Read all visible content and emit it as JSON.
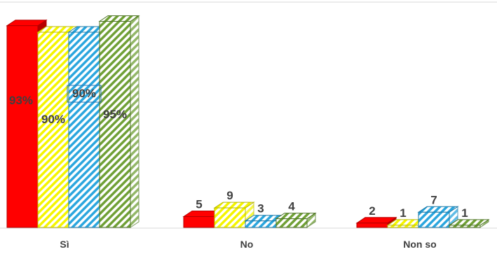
{
  "chart_data": {
    "type": "bar",
    "style": "3d-clustered",
    "grid": false,
    "legend": "none",
    "categories": [
      "Sì",
      "No",
      "Non so"
    ],
    "series": [
      {
        "values": [
          93,
          5,
          2
        ],
        "labels": [
          "93%",
          "5",
          "2"
        ],
        "color": "#ff0000",
        "dark": "#b50000",
        "pattern": "solid"
      },
      {
        "values": [
          90,
          9,
          1
        ],
        "labels": [
          "90%",
          "9",
          "1"
        ],
        "color": "#f5f500",
        "dark": "#b8b800",
        "pattern": "diagonal-stripes"
      },
      {
        "values": [
          90,
          3,
          7
        ],
        "labels": [
          "90%",
          "3",
          "7"
        ],
        "color": "#2ba6de",
        "dark": "#1b78a6",
        "pattern": "diagonal-stripes"
      },
      {
        "values": [
          95,
          4,
          1
        ],
        "labels": [
          "95%",
          "4",
          "1"
        ],
        "color": "#70a036",
        "dark": "#4d7324",
        "pattern": "diagonal-stripes"
      }
    ],
    "ylim": [
      0,
      100
    ],
    "title": "",
    "xlabel": "",
    "ylabel": ""
  }
}
